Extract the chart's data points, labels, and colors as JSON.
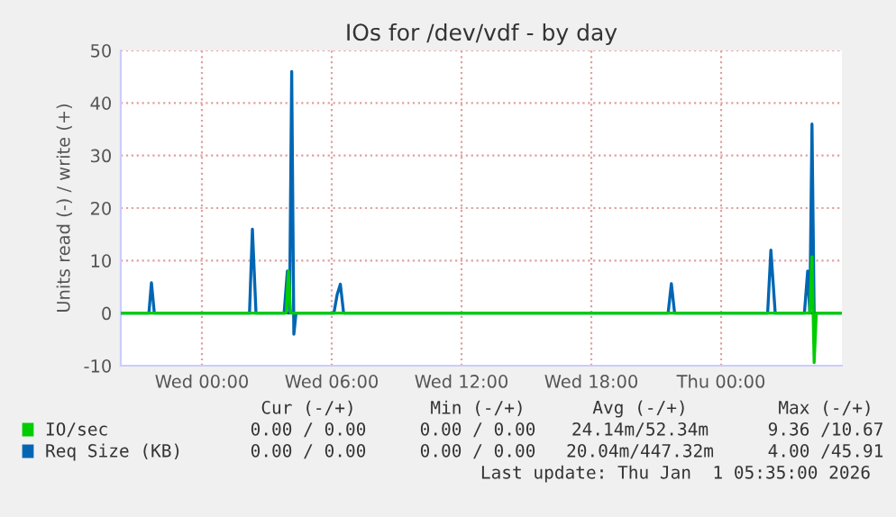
{
  "chart_data": {
    "type": "line",
    "title": "IOs for /dev/vdf - by day",
    "ylabel": "Units read (-) / write (+)",
    "xlim": [
      "2025-12-30T20:15",
      "2026-01-01T05:35"
    ],
    "xticks": [
      {
        "value": "2025-12-31T00:00",
        "label": "Wed 00:00"
      },
      {
        "value": "2025-12-31T06:00",
        "label": "Wed 06:00"
      },
      {
        "value": "2025-12-31T12:00",
        "label": "Wed 12:00"
      },
      {
        "value": "2025-12-31T18:00",
        "label": "Wed 18:00"
      },
      {
        "value": "2026-01-01T00:00",
        "label": "Thu 00:00"
      }
    ],
    "ylim": [
      -10,
      50
    ],
    "yticks": [
      -10,
      0,
      10,
      20,
      30,
      40,
      50
    ],
    "grid": true,
    "legend": "bottom",
    "marker": "none",
    "line_style": "solid",
    "ref_lines": [
      {
        "axis": "y",
        "value": 0,
        "color": "#000000"
      }
    ],
    "series": [
      {
        "name": "IO/sec",
        "color": "#00cc00",
        "x": [
          "2025-12-30T20:15",
          "2025-12-31T03:54",
          "2025-12-31T04:00",
          "2025-12-31T04:06",
          "2026-01-01T04:06",
          "2026-01-01T04:12",
          "2026-01-01T04:18",
          "2026-01-01T04:24",
          "2026-01-01T05:35"
        ],
        "values": [
          0,
          0,
          8,
          0,
          0,
          10.7,
          -9.4,
          0,
          0
        ]
      },
      {
        "name": "Req Size (KB)",
        "color": "#0066b3",
        "x": [
          "2025-12-30T20:15",
          "2025-12-30T21:33",
          "2025-12-30T21:40",
          "2025-12-30T21:48",
          "2025-12-31T02:12",
          "2025-12-31T02:20",
          "2025-12-31T02:30",
          "2025-12-31T03:48",
          "2025-12-31T03:57",
          "2025-12-31T04:03",
          "2025-12-31T04:09",
          "2025-12-31T04:15",
          "2025-12-31T04:21",
          "2025-12-31T06:06",
          "2025-12-31T06:15",
          "2025-12-31T06:24",
          "2025-12-31T06:33",
          "2025-12-31T21:33",
          "2025-12-31T21:42",
          "2025-12-31T21:51",
          "2026-01-01T02:09",
          "2026-01-01T02:18",
          "2026-01-01T02:30",
          "2026-01-01T03:51",
          "2026-01-01T04:00",
          "2026-01-01T04:06",
          "2026-01-01T04:12",
          "2026-01-01T04:18",
          "2026-01-01T04:24",
          "2026-01-01T05:35"
        ],
        "values": [
          0,
          0,
          5.8,
          0,
          0,
          16,
          0,
          0,
          8,
          0,
          46,
          -4,
          0,
          0,
          3.5,
          5.5,
          0,
          0,
          5.6,
          0,
          0,
          12,
          0,
          0,
          8,
          0,
          36,
          0,
          0,
          0
        ]
      }
    ],
    "annotations": [
      "Cur (-/+)",
      "Min (-/+)",
      "Avg (-/+)",
      "Max (-/+)",
      "0.00 / 0.00",
      "0.00 / 0.00",
      "24.14m/52.34m",
      "9.36 /10.67",
      "0.00 / 0.00",
      "0.00 / 0.00",
      "20.04m/447.32m",
      "4.00 /45.91",
      "Last update: Thu Jan  1 05:35:00 2026"
    ]
  }
}
